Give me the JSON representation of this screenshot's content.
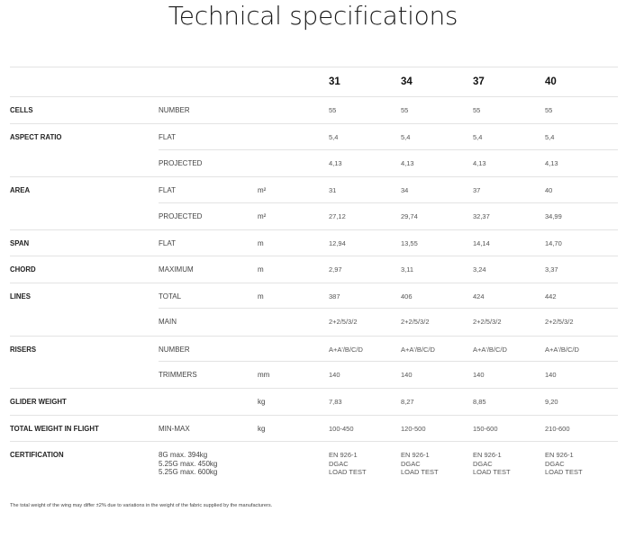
{
  "title": "Technical specifications",
  "sizes": [
    "31",
    "34",
    "37",
    "40"
  ],
  "rows": [
    {
      "label": "CELLS",
      "sub": "NUMBER",
      "unit": "",
      "values": [
        "55",
        "55",
        "55",
        "55"
      ]
    },
    {
      "label": "ASPECT RATIO",
      "sub": "FLAT",
      "unit": "",
      "values": [
        "5,4",
        "5,4",
        "5,4",
        "5,4"
      ]
    },
    {
      "label": "",
      "sub": "PROJECTED",
      "unit": "",
      "values": [
        "4,13",
        "4,13",
        "4,13",
        "4,13"
      ]
    },
    {
      "label": "AREA",
      "sub": "FLAT",
      "unit": "m²",
      "values": [
        "31",
        "34",
        "37",
        "40"
      ]
    },
    {
      "label": "",
      "sub": "PROJECTED",
      "unit": "m²",
      "values": [
        "27,12",
        "29,74",
        "32,37",
        "34,99"
      ]
    },
    {
      "label": "SPAN",
      "sub": "FLAT",
      "unit": "m",
      "values": [
        "12,94",
        "13,55",
        "14,14",
        "14,70"
      ]
    },
    {
      "label": "CHORD",
      "sub": "MAXIMUM",
      "unit": "m",
      "values": [
        "2,97",
        "3,11",
        "3,24",
        "3,37"
      ]
    },
    {
      "label": "LINES",
      "sub": "TOTAL",
      "unit": "m",
      "values": [
        "387",
        "406",
        "424",
        "442"
      ]
    },
    {
      "label": "",
      "sub": "MAIN",
      "unit": "",
      "values": [
        "2+2/5/3/2",
        "2+2/5/3/2",
        "2+2/5/3/2",
        "2+2/5/3/2"
      ]
    },
    {
      "label": "RISERS",
      "sub": "NUMBER",
      "unit": "",
      "values": [
        "A+A'/B/C/D",
        "A+A'/B/C/D",
        "A+A'/B/C/D",
        "A+A'/B/C/D"
      ]
    },
    {
      "label": "",
      "sub": "TRIMMERS",
      "unit": "mm",
      "values": [
        "140",
        "140",
        "140",
        "140"
      ]
    },
    {
      "label": "GLIDER WEIGHT",
      "sub": "",
      "unit": "kg",
      "values": [
        "7,83",
        "8,27",
        "8,85",
        "9,20"
      ]
    },
    {
      "label": "TOTAL WEIGHT IN FLIGHT",
      "sub": "MIN-MAX",
      "unit": "kg",
      "values": [
        "100-450",
        "120-500",
        "150-600",
        "210-600"
      ]
    },
    {
      "label": "CERTIFICATION",
      "sub": "8G max. 394kg\n5.25G max. 450kg\n5.25G max. 600kg",
      "unit": "",
      "values": [
        "EN 926-1\nDGAC\nLOAD TEST",
        "EN 926-1\nDGAC\nLOAD TEST",
        "EN 926-1\nDGAC\nLOAD TEST",
        "EN 926-1\nDGAC\nLOAD TEST"
      ]
    }
  ],
  "footnote": "The total weight of the wing may differ ±2% due to variations in the weight of the fabric supplied by the manufacturers."
}
